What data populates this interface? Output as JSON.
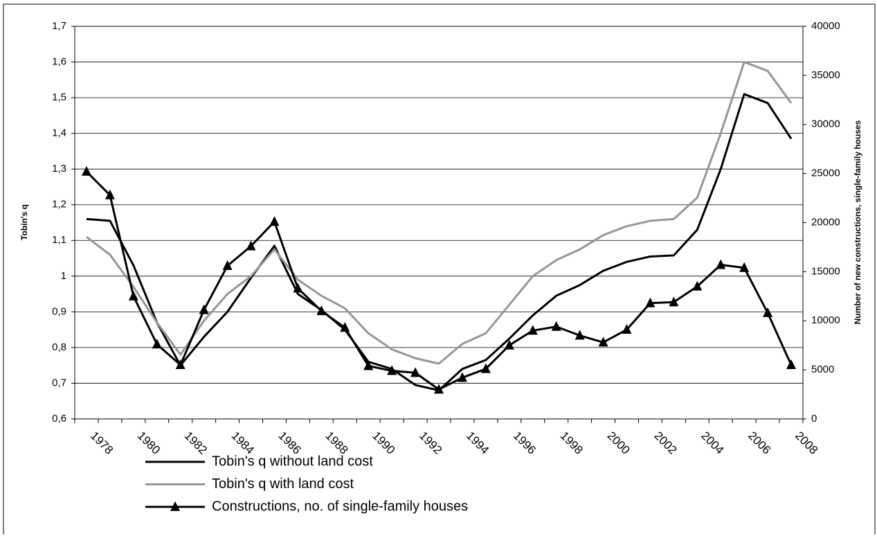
{
  "chart_data": {
    "type": "line",
    "categories": [
      "1978",
      null,
      "1980",
      null,
      "1982",
      null,
      "1984",
      null,
      "1986",
      null,
      "1988",
      null,
      "1990",
      null,
      "1992",
      null,
      "1994",
      null,
      "1996",
      null,
      "1998",
      null,
      "2000",
      null,
      "2002",
      null,
      "2004",
      null,
      "2006",
      null,
      "2008"
    ],
    "y_label": "Tobin's q",
    "y2_label": "Number of new constructions, single-family houses",
    "ylim": [
      0.6,
      1.7
    ],
    "yticks": [
      {
        "value": 0.6,
        "label": "0,6"
      },
      {
        "value": 0.7,
        "label": "0,7"
      },
      {
        "value": 0.8,
        "label": "0,8"
      },
      {
        "value": 0.9,
        "label": "0,9"
      },
      1,
      {
        "value": 1.1,
        "label": "1,1"
      },
      {
        "value": 1.2,
        "label": "1,2"
      },
      {
        "value": 1.3,
        "label": "1,3"
      },
      {
        "value": 1.4,
        "label": "1,4"
      },
      {
        "value": 1.5,
        "label": "1,5"
      },
      {
        "value": 1.6,
        "label": "1,6"
      },
      {
        "value": 1.7,
        "label": "1,7"
      }
    ],
    "y2lim": [
      0,
      40000
    ],
    "y2ticks": [
      0,
      5000,
      10000,
      15000,
      20000,
      25000,
      30000,
      35000,
      40000
    ],
    "grid": true,
    "legend": "bottom",
    "series": [
      {
        "name": "Tobin's q without land cost",
        "color": "#000000",
        "values": [
          1.16,
          1.155,
          1.03,
          0.87,
          0.75,
          0.83,
          0.9,
          0.995,
          1.085,
          0.95,
          0.905,
          0.85,
          0.76,
          0.74,
          0.695,
          0.68,
          0.74,
          0.765,
          0.825,
          0.89,
          0.945,
          0.975,
          1.015,
          1.04,
          1.055,
          1.058,
          1.13,
          1.3,
          1.51,
          1.485,
          1.385
        ]
      },
      {
        "name": "Tobin's q with land cost",
        "color": "#969696",
        "values": [
          1.11,
          1.06,
          0.97,
          0.87,
          0.78,
          0.875,
          0.95,
          1.0,
          1.075,
          0.99,
          0.945,
          0.91,
          0.84,
          0.795,
          0.77,
          0.755,
          0.81,
          0.84,
          0.92,
          1.0,
          1.045,
          1.075,
          1.115,
          1.14,
          1.155,
          1.16,
          1.22,
          1.4,
          1.6,
          1.575,
          1.485
        ]
      },
      {
        "name": "Constructions, no. of single-family houses",
        "color": "#000000",
        "axis": "y2",
        "marker": "triangle",
        "values": [
          25200,
          22800,
          12500,
          7600,
          5500,
          11100,
          15600,
          17600,
          20100,
          13300,
          11000,
          9300,
          5400,
          4900,
          4700,
          3000,
          4200,
          5100,
          7500,
          9000,
          9400,
          8500,
          7800,
          9100,
          11800,
          11900,
          13500,
          15700,
          15400,
          10800,
          5500
        ]
      }
    ]
  }
}
